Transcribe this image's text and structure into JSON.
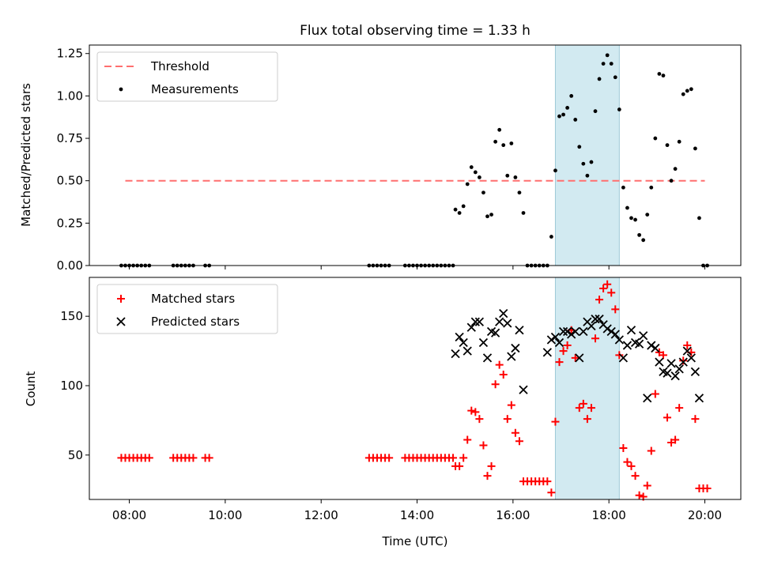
{
  "title": "Flux total observing time = 1.33 h",
  "colors": {
    "threshold": "#ff6f6f",
    "matched": "#ff0000",
    "predicted": "#000000",
    "measurement": "#000000",
    "band": "#add8e6"
  },
  "chart_data": [
    {
      "type": "scatter",
      "ylabel": "Matched/Predicted stars",
      "ylim": [
        0,
        1.3
      ],
      "yticks": [
        "0.00",
        "0.25",
        "0.50",
        "0.75",
        "1.00",
        "1.25"
      ],
      "legend": [
        "Threshold",
        "Measurements"
      ],
      "legend_position": "upper-left",
      "threshold": {
        "name": "Threshold",
        "y": 0.5,
        "x_start": "07:55",
        "x_end": "20:00"
      },
      "highlight_band": {
        "start": "16:53",
        "end": "18:13"
      },
      "series": [
        {
          "name": "Measurements",
          "marker": "dot",
          "points": [
            [
              "07:50",
              0
            ],
            [
              "07:55",
              0
            ],
            [
              "08:00",
              0
            ],
            [
              "08:05",
              0
            ],
            [
              "08:10",
              0
            ],
            [
              "08:15",
              0
            ],
            [
              "08:20",
              0
            ],
            [
              "08:25",
              0
            ],
            [
              "08:55",
              0
            ],
            [
              "09:00",
              0
            ],
            [
              "09:05",
              0
            ],
            [
              "09:10",
              0
            ],
            [
              "09:15",
              0
            ],
            [
              "09:20",
              0
            ],
            [
              "09:35",
              0
            ],
            [
              "09:40",
              0
            ],
            [
              "13:00",
              0
            ],
            [
              "13:05",
              0
            ],
            [
              "13:10",
              0
            ],
            [
              "13:15",
              0
            ],
            [
              "13:20",
              0
            ],
            [
              "13:25",
              0
            ],
            [
              "13:45",
              0
            ],
            [
              "13:50",
              0
            ],
            [
              "13:55",
              0
            ],
            [
              "14:00",
              0
            ],
            [
              "14:05",
              0
            ],
            [
              "14:10",
              0
            ],
            [
              "14:15",
              0
            ],
            [
              "14:20",
              0
            ],
            [
              "14:25",
              0
            ],
            [
              "14:30",
              0
            ],
            [
              "14:35",
              0
            ],
            [
              "14:40",
              0
            ],
            [
              "14:45",
              0
            ],
            [
              "14:48",
              0.33
            ],
            [
              "14:53",
              0.31
            ],
            [
              "14:58",
              0.35
            ],
            [
              "15:03",
              0.48
            ],
            [
              "15:08",
              0.58
            ],
            [
              "15:13",
              0.55
            ],
            [
              "15:18",
              0.52
            ],
            [
              "15:23",
              0.43
            ],
            [
              "15:28",
              0.29
            ],
            [
              "15:33",
              0.3
            ],
            [
              "15:38",
              0.73
            ],
            [
              "15:43",
              0.8
            ],
            [
              "15:48",
              0.71
            ],
            [
              "15:53",
              0.53
            ],
            [
              "15:58",
              0.72
            ],
            [
              "16:03",
              0.52
            ],
            [
              "16:08",
              0.43
            ],
            [
              "16:13",
              0.31
            ],
            [
              "16:18",
              0
            ],
            [
              "16:23",
              0
            ],
            [
              "16:28",
              0
            ],
            [
              "16:33",
              0
            ],
            [
              "16:38",
              0
            ],
            [
              "16:43",
              0
            ],
            [
              "16:48",
              0.17
            ],
            [
              "16:53",
              0.56
            ],
            [
              "16:58",
              0.88
            ],
            [
              "17:03",
              0.89
            ],
            [
              "17:08",
              0.93
            ],
            [
              "17:13",
              1.0
            ],
            [
              "17:18",
              0.86
            ],
            [
              "17:23",
              0.7
            ],
            [
              "17:28",
              0.6
            ],
            [
              "17:33",
              0.53
            ],
            [
              "17:38",
              0.61
            ],
            [
              "17:43",
              0.91
            ],
            [
              "17:48",
              1.1
            ],
            [
              "17:53",
              1.19
            ],
            [
              "17:58",
              1.24
            ],
            [
              "18:03",
              1.19
            ],
            [
              "18:08",
              1.11
            ],
            [
              "18:13",
              0.92
            ],
            [
              "18:18",
              0.46
            ],
            [
              "18:23",
              0.34
            ],
            [
              "18:28",
              0.28
            ],
            [
              "18:33",
              0.27
            ],
            [
              "18:38",
              0.18
            ],
            [
              "18:43",
              0.15
            ],
            [
              "18:48",
              0.3
            ],
            [
              "18:53",
              0.46
            ],
            [
              "18:58",
              0.75
            ],
            [
              "19:03",
              1.13
            ],
            [
              "19:08",
              1.12
            ],
            [
              "19:13",
              0.71
            ],
            [
              "19:18",
              0.5
            ],
            [
              "19:23",
              0.57
            ],
            [
              "19:28",
              0.73
            ],
            [
              "19:33",
              1.01
            ],
            [
              "19:38",
              1.03
            ],
            [
              "19:43",
              1.04
            ],
            [
              "19:48",
              0.69
            ],
            [
              "19:53",
              0.28
            ],
            [
              "19:58",
              0
            ],
            [
              "20:03",
              0
            ]
          ]
        }
      ]
    },
    {
      "type": "scatter",
      "xlabel": "Time (UTC)",
      "ylabel": "Count",
      "ylim": [
        18,
        178
      ],
      "yticks": [
        "50",
        "100",
        "150"
      ],
      "xticks": [
        "08:00",
        "10:00",
        "12:00",
        "14:00",
        "16:00",
        "18:00",
        "20:00"
      ],
      "legend": [
        "Matched stars",
        "Predicted stars"
      ],
      "legend_position": "upper-left",
      "highlight_band": {
        "start": "16:53",
        "end": "18:13"
      },
      "series": [
        {
          "name": "Matched stars",
          "marker": "plus",
          "points": [
            [
              "07:50",
              48
            ],
            [
              "07:55",
              48
            ],
            [
              "08:00",
              48
            ],
            [
              "08:05",
              48
            ],
            [
              "08:10",
              48
            ],
            [
              "08:15",
              48
            ],
            [
              "08:20",
              48
            ],
            [
              "08:25",
              48
            ],
            [
              "08:55",
              48
            ],
            [
              "09:00",
              48
            ],
            [
              "09:05",
              48
            ],
            [
              "09:10",
              48
            ],
            [
              "09:15",
              48
            ],
            [
              "09:20",
              48
            ],
            [
              "09:35",
              48
            ],
            [
              "09:40",
              48
            ],
            [
              "13:00",
              48
            ],
            [
              "13:05",
              48
            ],
            [
              "13:10",
              48
            ],
            [
              "13:15",
              48
            ],
            [
              "13:20",
              48
            ],
            [
              "13:25",
              48
            ],
            [
              "13:45",
              48
            ],
            [
              "13:50",
              48
            ],
            [
              "13:55",
              48
            ],
            [
              "14:00",
              48
            ],
            [
              "14:05",
              48
            ],
            [
              "14:10",
              48
            ],
            [
              "14:15",
              48
            ],
            [
              "14:20",
              48
            ],
            [
              "14:25",
              48
            ],
            [
              "14:30",
              48
            ],
            [
              "14:35",
              48
            ],
            [
              "14:40",
              48
            ],
            [
              "14:45",
              48
            ],
            [
              "14:48",
              42
            ],
            [
              "14:53",
              42
            ],
            [
              "14:58",
              48
            ],
            [
              "15:03",
              61
            ],
            [
              "15:08",
              82
            ],
            [
              "15:13",
              81
            ],
            [
              "15:18",
              76
            ],
            [
              "15:23",
              57
            ],
            [
              "15:28",
              35
            ],
            [
              "15:33",
              42
            ],
            [
              "15:38",
              101
            ],
            [
              "15:43",
              115
            ],
            [
              "15:48",
              108
            ],
            [
              "15:53",
              76
            ],
            [
              "15:58",
              86
            ],
            [
              "16:03",
              66
            ],
            [
              "16:08",
              60
            ],
            [
              "16:13",
              31
            ],
            [
              "16:18",
              31
            ],
            [
              "16:23",
              31
            ],
            [
              "16:28",
              31
            ],
            [
              "16:33",
              31
            ],
            [
              "16:38",
              31
            ],
            [
              "16:43",
              31
            ],
            [
              "16:48",
              23
            ],
            [
              "16:53",
              74
            ],
            [
              "16:58",
              117
            ],
            [
              "17:03",
              125
            ],
            [
              "17:08",
              129
            ],
            [
              "17:13",
              140
            ],
            [
              "17:18",
              120
            ],
            [
              "17:23",
              84
            ],
            [
              "17:28",
              87
            ],
            [
              "17:33",
              76
            ],
            [
              "17:38",
              84
            ],
            [
              "17:43",
              134
            ],
            [
              "17:48",
              162
            ],
            [
              "17:53",
              170
            ],
            [
              "17:58",
              173
            ],
            [
              "18:03",
              167
            ],
            [
              "18:08",
              155
            ],
            [
              "18:13",
              122
            ],
            [
              "18:18",
              55
            ],
            [
              "18:23",
              45
            ],
            [
              "18:28",
              42
            ],
            [
              "18:33",
              35
            ],
            [
              "18:38",
              21
            ],
            [
              "18:43",
              20
            ],
            [
              "18:48",
              28
            ],
            [
              "18:53",
              53
            ],
            [
              "18:58",
              94
            ],
            [
              "19:03",
              124
            ],
            [
              "19:08",
              122
            ],
            [
              "19:13",
              77
            ],
            [
              "19:18",
              59
            ],
            [
              "19:23",
              61
            ],
            [
              "19:28",
              84
            ],
            [
              "19:33",
              118
            ],
            [
              "19:38",
              129
            ],
            [
              "19:43",
              124
            ],
            [
              "19:48",
              76
            ],
            [
              "19:53",
              26
            ],
            [
              "19:58",
              26
            ],
            [
              "20:03",
              26
            ]
          ]
        },
        {
          "name": "Predicted stars",
          "marker": "x",
          "points": [
            [
              "14:48",
              123
            ],
            [
              "14:53",
              135
            ],
            [
              "14:58",
              131
            ],
            [
              "15:03",
              125
            ],
            [
              "15:08",
              142
            ],
            [
              "15:13",
              146
            ],
            [
              "15:18",
              146
            ],
            [
              "15:23",
              131
            ],
            [
              "15:28",
              120
            ],
            [
              "15:33",
              139
            ],
            [
              "15:38",
              138
            ],
            [
              "15:43",
              146
            ],
            [
              "15:48",
              152
            ],
            [
              "15:53",
              145
            ],
            [
              "15:58",
              121
            ],
            [
              "16:03",
              127
            ],
            [
              "16:08",
              140
            ],
            [
              "16:13",
              97
            ],
            [
              "16:43",
              124
            ],
            [
              "16:48",
              133
            ],
            [
              "16:53",
              135
            ],
            [
              "16:58",
              131
            ],
            [
              "17:03",
              139
            ],
            [
              "17:08",
              139
            ],
            [
              "17:13",
              137
            ],
            [
              "17:18",
              139
            ],
            [
              "17:23",
              120
            ],
            [
              "17:28",
              139
            ],
            [
              "17:33",
              146
            ],
            [
              "17:38",
              143
            ],
            [
              "17:43",
              148
            ],
            [
              "17:48",
              148
            ],
            [
              "17:53",
              144
            ],
            [
              "17:58",
              141
            ],
            [
              "18:03",
              139
            ],
            [
              "18:08",
              137
            ],
            [
              "18:13",
              133
            ],
            [
              "18:18",
              120
            ],
            [
              "18:23",
              129
            ],
            [
              "18:28",
              140
            ],
            [
              "18:33",
              131
            ],
            [
              "18:38",
              130
            ],
            [
              "18:43",
              136
            ],
            [
              "18:48",
              91
            ],
            [
              "18:53",
              129
            ],
            [
              "18:58",
              127
            ],
            [
              "19:03",
              117
            ],
            [
              "19:08",
              110
            ],
            [
              "19:13",
              109
            ],
            [
              "19:18",
              116
            ],
            [
              "19:23",
              107
            ],
            [
              "19:28",
              112
            ],
            [
              "19:33",
              117
            ],
            [
              "19:38",
              125
            ],
            [
              "19:43",
              120
            ],
            [
              "19:48",
              110
            ],
            [
              "19:53",
              91
            ]
          ]
        }
      ]
    }
  ]
}
